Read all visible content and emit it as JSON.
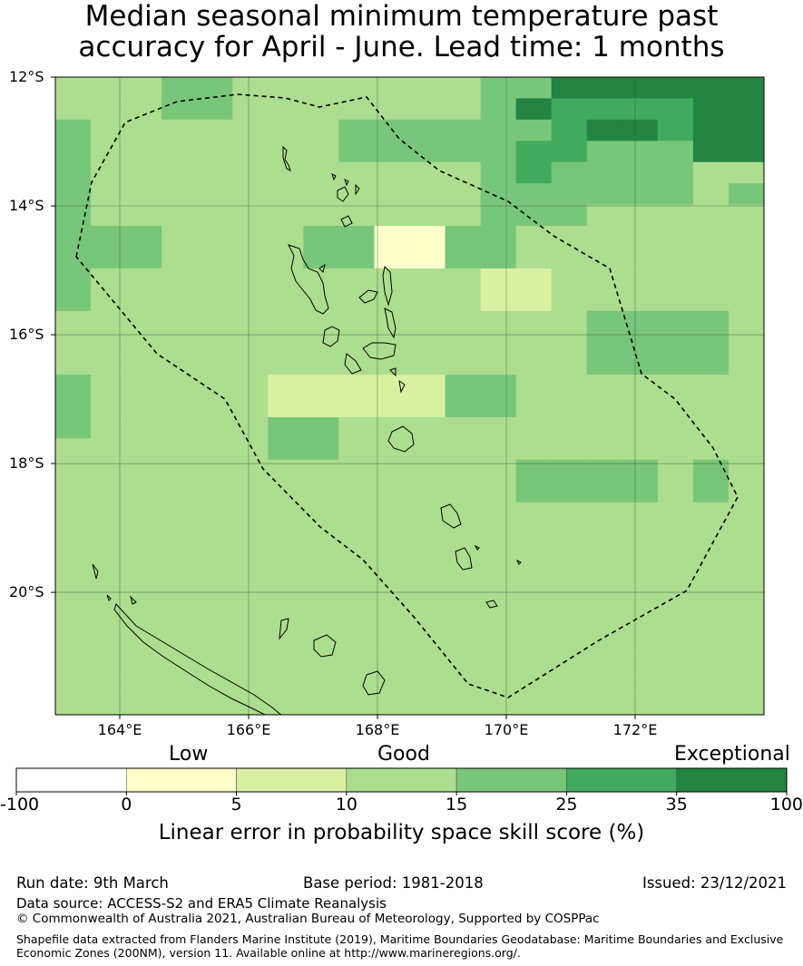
{
  "title": {
    "line1": "Median seasonal minimum temperature past",
    "line2": "accuracy for April - June. Lead time: 1 months"
  },
  "map": {
    "lat_labels": [
      "12°S",
      "14°S",
      "16°S",
      "18°S",
      "20°S"
    ],
    "lon_labels": [
      "164°E",
      "166°E",
      "168°E",
      "170°E",
      "172°E"
    ],
    "lon_range": [
      163,
      174
    ],
    "lat_range": [
      -21.9,
      -12
    ],
    "grid_lons": [
      164,
      166,
      168,
      170,
      172
    ],
    "grid_lats": [
      -12,
      -14,
      -16,
      -18,
      -20
    ],
    "cell_values": [
      [
        3,
        3,
        3,
        4,
        4,
        3,
        3,
        3,
        3,
        3,
        3,
        3,
        4,
        4,
        6,
        6,
        6,
        6,
        6,
        6
      ],
      [
        3,
        3,
        3,
        4,
        4,
        3,
        3,
        3,
        3,
        3,
        3,
        3,
        4,
        6,
        5,
        5,
        5,
        5,
        6,
        6
      ],
      [
        4,
        3,
        3,
        3,
        3,
        3,
        3,
        3,
        4,
        4,
        4,
        4,
        4,
        4,
        5,
        6,
        6,
        5,
        6,
        6
      ],
      [
        4,
        3,
        3,
        3,
        3,
        3,
        3,
        3,
        4,
        4,
        4,
        4,
        4,
        5,
        5,
        4,
        4,
        4,
        6,
        6
      ],
      [
        4,
        3,
        3,
        3,
        3,
        3,
        3,
        3,
        3,
        3,
        3,
        3,
        4,
        5,
        4,
        4,
        4,
        4,
        3,
        3
      ],
      [
        4,
        3,
        3,
        3,
        3,
        3,
        3,
        3,
        3,
        3,
        3,
        3,
        4,
        4,
        4,
        4,
        4,
        4,
        3,
        4
      ],
      [
        4,
        3,
        3,
        3,
        3,
        3,
        3,
        3,
        3,
        3,
        3,
        3,
        4,
        4,
        4,
        3,
        3,
        3,
        3,
        3
      ],
      [
        4,
        4,
        4,
        3,
        3,
        3,
        3,
        4,
        4,
        1,
        1,
        4,
        4,
        3,
        3,
        3,
        3,
        3,
        3,
        3
      ],
      [
        4,
        4,
        4,
        3,
        3,
        3,
        3,
        4,
        4,
        1,
        1,
        4,
        4,
        3,
        3,
        3,
        3,
        3,
        3,
        3
      ],
      [
        4,
        3,
        3,
        3,
        3,
        3,
        3,
        3,
        3,
        3,
        3,
        3,
        2,
        2,
        3,
        3,
        3,
        3,
        3,
        3
      ],
      [
        4,
        3,
        3,
        3,
        3,
        3,
        3,
        3,
        3,
        3,
        3,
        3,
        2,
        2,
        3,
        3,
        3,
        3,
        3,
        3
      ],
      [
        3,
        3,
        3,
        3,
        3,
        3,
        3,
        3,
        3,
        3,
        3,
        3,
        3,
        3,
        3,
        4,
        4,
        4,
        4,
        3
      ],
      [
        3,
        3,
        3,
        3,
        3,
        3,
        3,
        3,
        3,
        3,
        3,
        3,
        3,
        3,
        3,
        4,
        4,
        4,
        4,
        3
      ],
      [
        3,
        3,
        3,
        3,
        3,
        3,
        3,
        3,
        3,
        3,
        3,
        3,
        3,
        3,
        3,
        4,
        4,
        4,
        4,
        3
      ],
      [
        4,
        3,
        3,
        3,
        3,
        3,
        2,
        2,
        2,
        2,
        2,
        4,
        4,
        3,
        3,
        3,
        3,
        3,
        3,
        3
      ],
      [
        4,
        3,
        3,
        3,
        3,
        3,
        2,
        2,
        2,
        2,
        2,
        4,
        4,
        3,
        3,
        3,
        3,
        3,
        3,
        3
      ],
      [
        4,
        3,
        3,
        3,
        3,
        3,
        4,
        4,
        3,
        3,
        3,
        3,
        3,
        3,
        3,
        3,
        3,
        3,
        3,
        3
      ],
      [
        3,
        3,
        3,
        3,
        3,
        3,
        4,
        4,
        3,
        3,
        3,
        3,
        3,
        3,
        3,
        3,
        3,
        3,
        3,
        3
      ],
      [
        3,
        3,
        3,
        3,
        3,
        3,
        3,
        3,
        3,
        3,
        3,
        3,
        3,
        4,
        4,
        4,
        4,
        3,
        4,
        3
      ],
      [
        3,
        3,
        3,
        3,
        3,
        3,
        3,
        3,
        3,
        3,
        3,
        3,
        3,
        4,
        4,
        4,
        4,
        3,
        4,
        3
      ],
      [
        3,
        3,
        3,
        3,
        3,
        3,
        3,
        3,
        3,
        3,
        3,
        3,
        3,
        3,
        3,
        3,
        3,
        3,
        3,
        3
      ],
      [
        3,
        3,
        3,
        3,
        3,
        3,
        3,
        3,
        3,
        3,
        3,
        3,
        3,
        3,
        3,
        3,
        3,
        3,
        3,
        3
      ],
      [
        3,
        3,
        3,
        3,
        3,
        3,
        3,
        3,
        3,
        3,
        3,
        3,
        3,
        3,
        3,
        3,
        3,
        3,
        3,
        3
      ],
      [
        3,
        3,
        3,
        3,
        3,
        3,
        3,
        3,
        3,
        3,
        3,
        3,
        3,
        3,
        3,
        3,
        3,
        3,
        3,
        3
      ],
      [
        3,
        3,
        3,
        3,
        3,
        3,
        3,
        3,
        3,
        3,
        3,
        3,
        3,
        3,
        3,
        3,
        3,
        3,
        3,
        3
      ],
      [
        3,
        3,
        3,
        3,
        3,
        3,
        3,
        3,
        3,
        3,
        3,
        3,
        3,
        3,
        3,
        3,
        3,
        3,
        3,
        3
      ],
      [
        3,
        3,
        3,
        3,
        3,
        3,
        3,
        3,
        3,
        3,
        3,
        3,
        3,
        3,
        3,
        3,
        3,
        3,
        3,
        3
      ],
      [
        3,
        3,
        3,
        3,
        3,
        3,
        3,
        3,
        3,
        3,
        3,
        3,
        3,
        3,
        3,
        3,
        3,
        3,
        3,
        3
      ],
      [
        3,
        3,
        3,
        3,
        3,
        3,
        3,
        3,
        3,
        3,
        3,
        3,
        3,
        3,
        3,
        3,
        3,
        3,
        3,
        3
      ],
      [
        3,
        3,
        3,
        3,
        3,
        3,
        3,
        3,
        3,
        3,
        3,
        3,
        3,
        3,
        3,
        3,
        3,
        3,
        3,
        3
      ]
    ]
  },
  "colorbar": {
    "category_labels": [
      "Low",
      "Good",
      "Exceptional"
    ],
    "ticks": [
      "-100",
      "0",
      "5",
      "10",
      "15",
      "25",
      "35",
      "100"
    ],
    "colors": [
      "#ffffff",
      "#ffffcc",
      "#d9f0a3",
      "#addd8e",
      "#78c679",
      "#41ab5d",
      "#238443"
    ],
    "title": "Linear error in probability space skill score (%)"
  },
  "footer": {
    "run_date": "Run date: 9th March",
    "base_period": "Base period: 1981-2018",
    "issued": "Issued: 23/12/2021",
    "data_source": "Data source: ACCESS-S2 and ERA5 Climate Reanalysis",
    "copyright": "© Commonwealth of Australia 2021, Australian Bureau of Meteorology, Supported by COSPPac",
    "shapefile_line1": "Shapefile data extracted from Flanders Marine Institute (2019), Maritime Boundaries Geodatabase: Maritime Boundaries and Exclusive",
    "shapefile_line2": "Economic Zones (200NM), version 11. Available online at http://www.marineregions.org/."
  }
}
